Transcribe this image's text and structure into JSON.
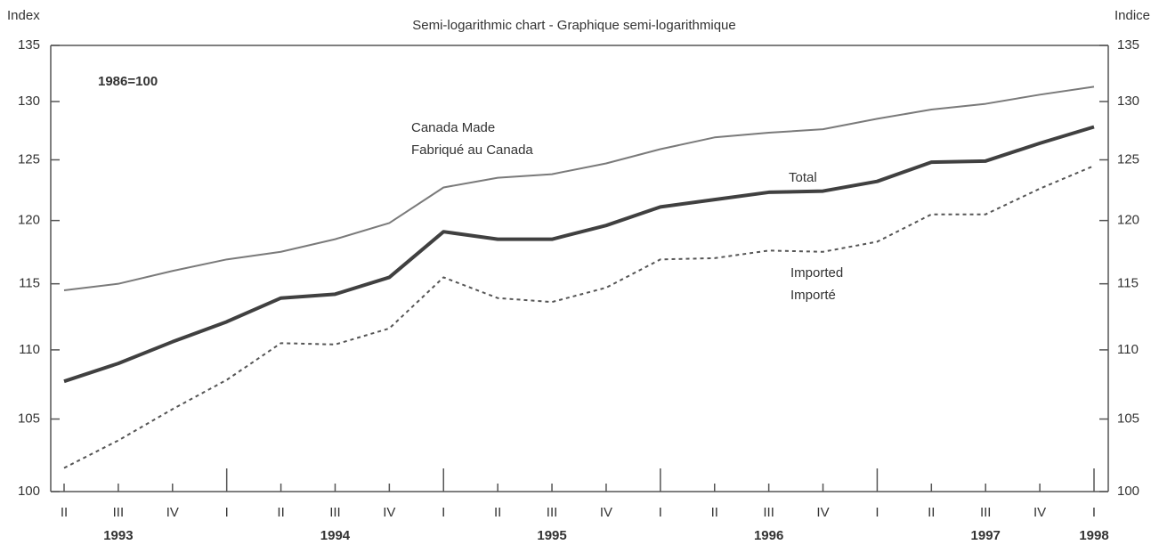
{
  "chart_data": {
    "type": "line",
    "title": "Semi-logarithmic chart - Graphique semi-logarithmique",
    "y_label": "Index",
    "y2_label": "Indice",
    "annotation": "1986=100",
    "log_scale": true,
    "categories": [
      "II",
      "III",
      "IV",
      "I",
      "II",
      "III",
      "IV",
      "I",
      "II",
      "III",
      "IV",
      "I",
      "II",
      "III",
      "IV",
      "I",
      "II",
      "III",
      "IV",
      "I"
    ],
    "year_labels": [
      null,
      "1993",
      null,
      null,
      null,
      "1994",
      null,
      null,
      null,
      "1995",
      null,
      null,
      null,
      "1996",
      null,
      null,
      null,
      "1997",
      null,
      "1998"
    ],
    "series": [
      {
        "name": "Canada Made",
        "name_fr": "Fabriqué au Canada",
        "color": "#7a7a7a",
        "values": [
          114.5,
          115.0,
          116.0,
          116.9,
          117.5,
          118.5,
          119.8,
          122.7,
          123.5,
          123.8,
          124.7,
          125.9,
          126.9,
          127.3,
          127.6,
          128.5,
          129.3,
          129.8,
          130.6,
          131.3
        ]
      },
      {
        "name": "Total",
        "color": "#404040",
        "values": [
          107.7,
          109.0,
          110.6,
          112.1,
          113.9,
          114.2,
          115.5,
          119.1,
          118.5,
          118.5,
          119.6,
          121.1,
          121.7,
          122.3,
          122.4,
          123.2,
          124.8,
          124.9,
          126.4,
          127.8
        ]
      },
      {
        "name": "Imported",
        "name_fr": "Importé",
        "color": "#555555",
        "dashed": true,
        "values": [
          101.6,
          103.5,
          105.7,
          107.8,
          110.5,
          110.4,
          111.6,
          115.5,
          113.9,
          113.6,
          114.7,
          116.9,
          117.0,
          117.6,
          117.5,
          118.3,
          120.5,
          120.5,
          122.6,
          124.5
        ]
      }
    ],
    "ylim": [
      100,
      135
    ],
    "yticks": [
      100,
      105,
      110,
      115,
      120,
      125,
      130,
      135
    ],
    "y2lim": [
      100,
      135
    ],
    "y2ticks": [
      100,
      105,
      110,
      115,
      120,
      125,
      130,
      135
    ]
  }
}
